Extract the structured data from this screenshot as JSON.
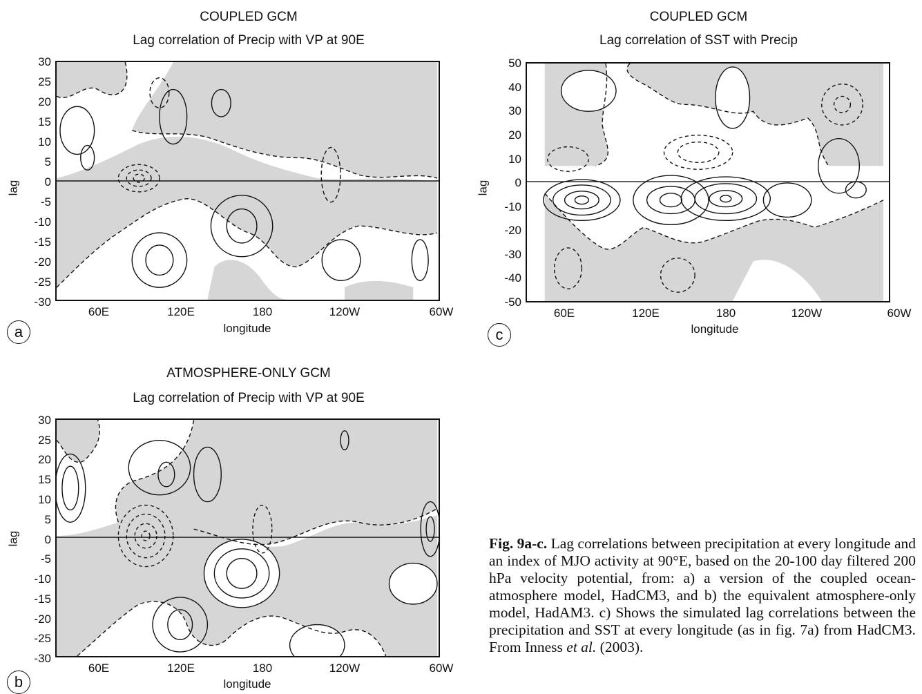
{
  "panels": [
    {
      "id": "a",
      "title1": "COUPLED GCM",
      "title2": "Lag correlation of Precip with VP at 90E",
      "ylabel": "lag",
      "xlabel": "longitude",
      "yticks": [
        "30",
        "25",
        "20",
        "15",
        "10",
        "5",
        "0",
        "-5",
        "-10",
        "-15",
        "-20",
        "-25",
        "-30"
      ],
      "xticks": [
        "60E",
        "120E",
        "180",
        "120W",
        "60W"
      ],
      "letter": "a"
    },
    {
      "id": "b",
      "title1": "ATMOSPHERE-ONLY GCM",
      "title2": "Lag correlation of Precip with VP at 90E",
      "ylabel": "lag",
      "xlabel": "longitude",
      "yticks": [
        "30",
        "25",
        "20",
        "15",
        "10",
        "5",
        "0",
        "-5",
        "-10",
        "-15",
        "-20",
        "-25",
        "-30"
      ],
      "xticks": [
        "60E",
        "120E",
        "180",
        "120W",
        "60W"
      ],
      "letter": "b"
    },
    {
      "id": "c",
      "title1": "COUPLED GCM",
      "title2": "Lag correlation of SST with Precip",
      "ylabel": "lag",
      "xlabel": "longitude",
      "yticks": [
        "50",
        "40",
        "30",
        "20",
        "10",
        "0",
        "-10",
        "-20",
        "-30",
        "-40",
        "-50"
      ],
      "xticks": [
        "60E",
        "120E",
        "180",
        "120W",
        "60W"
      ],
      "letter": "c"
    }
  ],
  "caption": {
    "label": "Fig. 9a-c.",
    "text": "Lag correlations between precipitation at every longitude and an index of MJO activity at 90°E, based on the 20-100 day filtered 200 hPa velocity potential, from: a) a version of the coupled ocean-atmosphere model, HadCM3, and b) the equivalent atmosphere-only model, HadAM3. c) Shows the simulated lag correlations between the precipitation and SST at every longitude (as in fig. 7a) from HadCM3. From Inness ",
    "etal": "et al.",
    "tail": " (2003)."
  },
  "chart_data": [
    {
      "type": "heatmap",
      "title": "Lag correlation of Precip with VP at 90E",
      "xlabel": "longitude",
      "ylabel": "lag",
      "xlim": [
        "60E",
        "60W"
      ],
      "ylim": [
        -30,
        30
      ],
      "description_of_fields": "contours of lag correlation; shaded = negative, dashed = negative contours, solid = positive"
    },
    {
      "type": "heatmap",
      "title": "Lag correlation of Precip with VP at 90E",
      "xlabel": "longitude",
      "ylabel": "lag",
      "xlim": [
        "60E",
        "60W"
      ],
      "ylim": [
        -30,
        30
      ]
    },
    {
      "type": "heatmap",
      "title": "Lag correlation of SST with Precip",
      "xlabel": "longitude",
      "ylabel": "lag",
      "xlim": [
        "60E",
        "60W"
      ],
      "ylim": [
        -50,
        50
      ]
    }
  ],
  "colors": {
    "shade": "#d6d6d6",
    "line": "#111111"
  }
}
